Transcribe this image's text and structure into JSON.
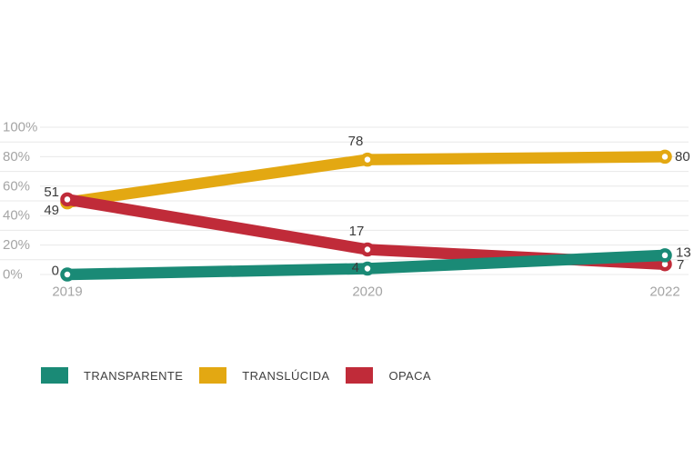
{
  "chart_data": {
    "type": "line",
    "title": "",
    "categories": [
      "2019",
      "2020",
      "2022"
    ],
    "series": [
      {
        "name": "TRANSPARENTE",
        "color": "#1a8a76",
        "values": [
          0,
          4,
          13
        ]
      },
      {
        "name": "TRANSLÚCIDA",
        "color": "#e3a812",
        "values": [
          49,
          78,
          80
        ]
      },
      {
        "name": "OPACA",
        "color": "#c02b39",
        "values": [
          51,
          17,
          7
        ]
      }
    ],
    "y_ticks": [
      "0%",
      "20%",
      "40%",
      "60%",
      "80%",
      "100%"
    ],
    "ylim": [
      0,
      100
    ],
    "grid": "horizontal lines every 10%",
    "legend_position": "bottom-left",
    "axis_label_color": "#a5a5a5",
    "value_label_color": "#3b3b3b",
    "gridline_color": "#e8e8e8",
    "background_color": "#ffffff"
  }
}
